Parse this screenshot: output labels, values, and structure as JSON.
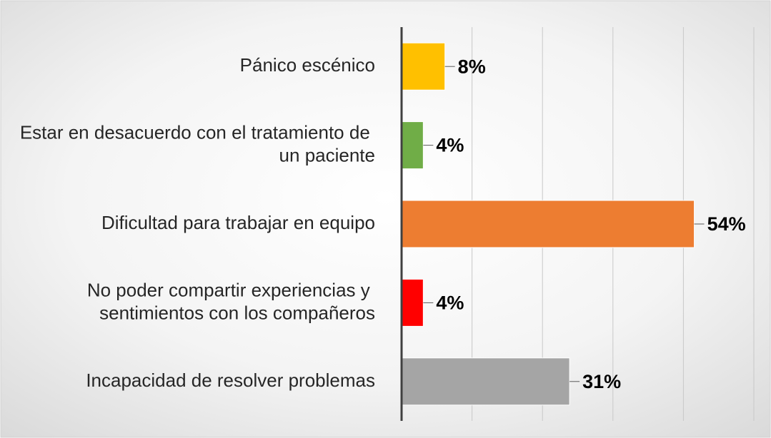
{
  "chart_data": {
    "type": "barh",
    "categories": [
      "Pánico escénico",
      "Estar en desacuerdo con el tratamiento de un paciente",
      "Dificultad para trabajar en equipo",
      "No poder compartir experiencias y sentimientos con los compañeros",
      "Incapacidad de resolver problemas"
    ],
    "values": [
      8,
      4,
      54,
      4,
      31
    ],
    "value_labels": [
      "8%",
      "4%",
      "54%",
      "4%",
      "31%"
    ],
    "colors": [
      "#ffc000",
      "#70ad47",
      "#ed7d31",
      "#ff0000",
      "#a5a5a5"
    ],
    "xlim": [
      0,
      65
    ],
    "xticks": [
      0,
      13,
      26,
      39,
      52,
      65
    ],
    "grid": true
  }
}
